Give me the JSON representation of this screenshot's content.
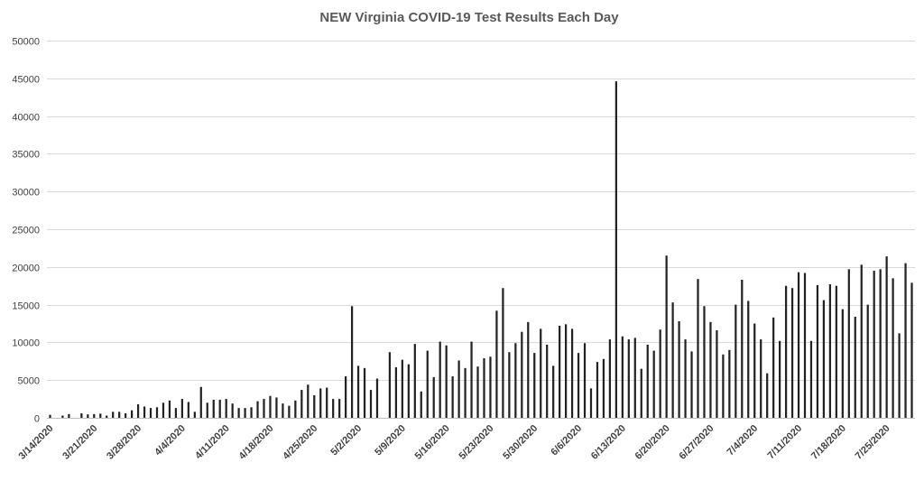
{
  "chart_data": {
    "type": "bar",
    "title": "NEW Virginia COVID-19 Test Results Each Day",
    "xlabel": "",
    "ylabel": "",
    "ylim": [
      0,
      50000
    ],
    "yticks": [
      "0",
      "5000",
      "10000",
      "15000",
      "20000",
      "25000",
      "30000",
      "35000",
      "40000",
      "45000",
      "50000"
    ],
    "grid": true,
    "legend": "none",
    "bar_color": "#222222",
    "x_tick_labels": [
      "3/14/2020",
      "3/21/2020",
      "3/28/2020",
      "4/4/2020",
      "4/11/2020",
      "4/18/2020",
      "4/25/2020",
      "5/2/2020",
      "5/9/2020",
      "5/16/2020",
      "5/23/2020",
      "5/30/2020",
      "6/6/2020",
      "6/13/2020",
      "6/20/2020",
      "6/27/2020",
      "7/4/2020",
      "7/11/2020",
      "7/18/2020",
      "7/25/2020"
    ],
    "start_date": "3/14/2020",
    "values": [
      400,
      0,
      300,
      500,
      0,
      600,
      450,
      500,
      550,
      300,
      800,
      800,
      600,
      1000,
      1800,
      1500,
      1300,
      1400,
      2000,
      2300,
      1300,
      2500,
      2100,
      800,
      4100,
      2000,
      2400,
      2400,
      2500,
      1900,
      1300,
      1300,
      1400,
      2200,
      2500,
      2900,
      2700,
      1900,
      1600,
      2300,
      3700,
      4400,
      3000,
      3900,
      4000,
      2500,
      2500,
      5500,
      14800,
      6900,
      6600,
      3700,
      5200,
      0,
      8700,
      6700,
      7700,
      7100,
      9800,
      3500,
      8900,
      5400,
      10100,
      9600,
      5500,
      7600,
      6600,
      10100,
      6800,
      7900,
      8100,
      14200,
      17200,
      8700,
      9900,
      11400,
      12700,
      8600,
      11800,
      9700,
      6900,
      12200,
      12400,
      11800,
      8600,
      9900,
      3900,
      7400,
      7800,
      10400,
      44600,
      10800,
      10400,
      10600,
      6500,
      9700,
      8900,
      11700,
      21500,
      15300,
      12800,
      10400,
      8800,
      18400,
      14800,
      12700,
      11600,
      8400,
      9000,
      15000,
      18300,
      15500,
      12500,
      10400,
      5900,
      13300,
      10200,
      17500,
      17200,
      19300,
      19200,
      10200,
      17600,
      15600,
      17700,
      17500,
      14400,
      19700,
      13400,
      20300,
      15000,
      19500,
      19700,
      21400,
      18500,
      11200,
      20500,
      17900
    ]
  }
}
